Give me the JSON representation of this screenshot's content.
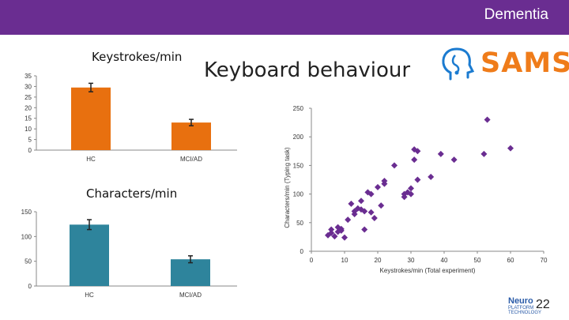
{
  "banner": {
    "title": "Dementia",
    "color": "#6a2d91"
  },
  "slide": {
    "title": "Keyboard behaviour",
    "page_number": "22"
  },
  "logo": {
    "text": "SAMS",
    "icon": "head-outline-icon",
    "color": "#ef7c1a"
  },
  "footer_logo": {
    "line1": "Neuro",
    "line2": "PLATFORM TECHNOLOGY"
  },
  "chart_data": [
    {
      "type": "bar",
      "title": "Keystrokes/min",
      "categories": [
        "HC",
        "MCI/AD"
      ],
      "values": [
        29.5,
        13
      ],
      "errors": [
        2,
        1.5
      ],
      "ylim": [
        0,
        35
      ],
      "yticks": [
        "0",
        "5",
        "10",
        "15",
        "20",
        "25",
        "30",
        "35"
      ],
      "color": "#e8700f"
    },
    {
      "type": "bar",
      "title": "Characters/min",
      "categories": [
        "HC",
        "MCI/AD"
      ],
      "values": [
        124,
        54
      ],
      "errors": [
        10,
        7
      ],
      "ylim": [
        0,
        150
      ],
      "yticks": [
        "0",
        "50",
        "100",
        "150"
      ],
      "color": "#2e849c"
    },
    {
      "type": "scatter",
      "xlabel": "Keystrokes/min (Total experiment)",
      "ylabel": "Characters/min (Typing task)",
      "xlim": [
        0,
        70
      ],
      "ylim": [
        0,
        250
      ],
      "xticks": [
        "0",
        "10",
        "20",
        "30",
        "40",
        "50",
        "60",
        "70"
      ],
      "yticks": [
        "0",
        "50",
        "100",
        "150",
        "200",
        "250"
      ],
      "color": "#6a2d91",
      "points": [
        [
          5,
          28
        ],
        [
          6,
          32
        ],
        [
          6,
          38
        ],
        [
          7,
          26
        ],
        [
          8,
          34
        ],
        [
          8,
          42
        ],
        [
          9,
          39
        ],
        [
          9,
          36
        ],
        [
          10,
          24
        ],
        [
          11,
          55
        ],
        [
          12,
          83
        ],
        [
          13,
          70
        ],
        [
          13,
          65
        ],
        [
          14,
          75
        ],
        [
          15,
          88
        ],
        [
          15,
          73
        ],
        [
          16,
          70
        ],
        [
          16,
          38
        ],
        [
          17,
          103
        ],
        [
          18,
          100
        ],
        [
          18,
          68
        ],
        [
          19,
          58
        ],
        [
          20,
          112
        ],
        [
          21,
          80
        ],
        [
          22,
          118
        ],
        [
          22,
          123
        ],
        [
          25,
          150
        ],
        [
          28,
          95
        ],
        [
          28,
          100
        ],
        [
          29,
          103
        ],
        [
          30,
          110
        ],
        [
          30,
          100
        ],
        [
          31,
          160
        ],
        [
          31,
          178
        ],
        [
          32,
          125
        ],
        [
          32,
          175
        ],
        [
          36,
          130
        ],
        [
          39,
          170
        ],
        [
          43,
          160
        ],
        [
          52,
          170
        ],
        [
          53,
          230
        ],
        [
          60,
          180
        ]
      ]
    }
  ]
}
